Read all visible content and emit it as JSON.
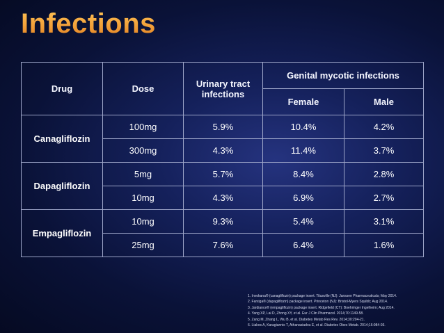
{
  "title": "Infections",
  "table": {
    "headers": {
      "drug": "Drug",
      "dose": "Dose",
      "uti": "Urinary tract infections",
      "genital": "Genital mycotic infections",
      "female": "Female",
      "male": "Male"
    },
    "rows": [
      {
        "drug": "Canagliflozin",
        "dose": "100mg",
        "uti": "5.9%",
        "female": "10.4%",
        "male": "4.2%"
      },
      {
        "drug": "Canagliflozin",
        "dose": "300mg",
        "uti": "4.3%",
        "female": "11.4%",
        "male": "3.7%"
      },
      {
        "drug": "Dapagliflozin",
        "dose": "5mg",
        "uti": "5.7%",
        "female": "8.4%",
        "male": "2.8%"
      },
      {
        "drug": "Dapagliflozin",
        "dose": "10mg",
        "uti": "4.3%",
        "female": "6.9%",
        "male": "2.7%"
      },
      {
        "drug": "Empagliflozin",
        "dose": "10mg",
        "uti": "9.3%",
        "female": "5.4%",
        "male": "3.1%"
      },
      {
        "drug": "Empagliflozin",
        "dose": "25mg",
        "uti": "7.6%",
        "female": "6.4%",
        "male": "1.6%"
      }
    ]
  },
  "footnotes": [
    "1. Invokana® (canagliflozin) package insert. Titusville (NJ): Janssen Pharmaceuticals; May 2014.",
    "2. Farxiga® (dapagliflozin) package insert. Princeton (NJ): Bristol-Myers Squibb; Aug 2014.",
    "3. Jardiance® (empagliflozin) package insert. Ridgefield (CT): Boehringer Ingelheim; Aug 2014.",
    "4. Yang XP, Lai D, Zhong XY, et al. Eur J Clin Pharmacol. 2014;70:1149-58.",
    "5. Zang M, Zhang L, Wu B, et al. Diabetes Metab Res Rev. 2014;30:204-21.",
    "6. Liakos A, Karagiannis T, Athanasiadou E, et al. Diabetes Obes Metab. 2014;16:984-93."
  ]
}
